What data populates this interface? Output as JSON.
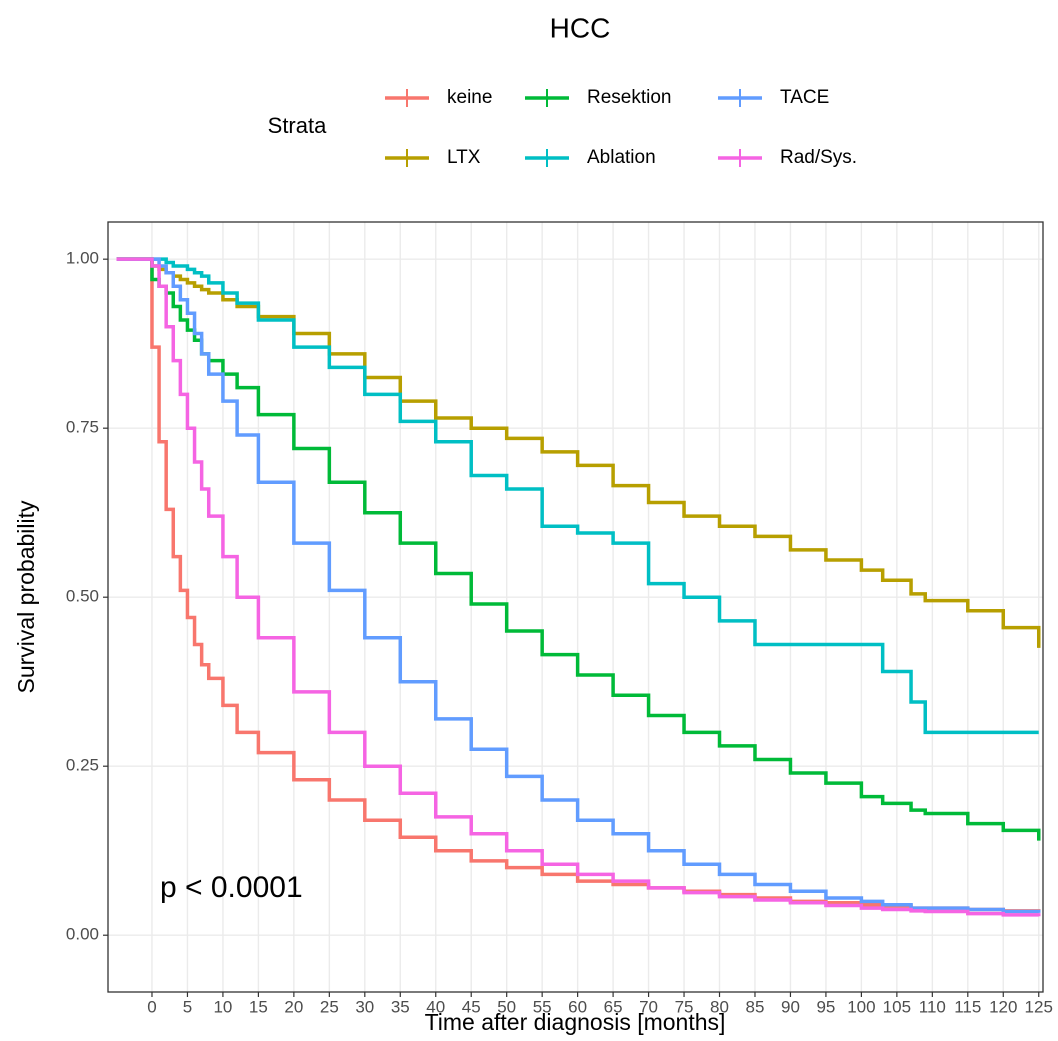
{
  "chart_data": {
    "type": "step",
    "title": "HCC",
    "xlabel": "Time after diagnosis [months]",
    "ylabel": "Survival probability",
    "legend_title": "Strata",
    "annotation": "p < 0.0001",
    "grid": true,
    "xlim": [
      -6.2,
      125.6
    ],
    "ylim": [
      -0.084,
      1.055
    ],
    "xticks": [
      0,
      5,
      10,
      15,
      20,
      25,
      30,
      35,
      40,
      45,
      50,
      55,
      60,
      65,
      70,
      75,
      80,
      85,
      90,
      95,
      100,
      105,
      110,
      115,
      120,
      125
    ],
    "yticks": [
      {
        "value": 0,
        "label": "0.00"
      },
      0.25,
      {
        "value": 0.5,
        "label": "0.50"
      },
      0.75,
      {
        "value": 1,
        "label": "1.00"
      }
    ],
    "x": [
      -5,
      0,
      1,
      2,
      3,
      4,
      5,
      6,
      7,
      8,
      10,
      12,
      15,
      20,
      25,
      30,
      35,
      40,
      45,
      50,
      55,
      60,
      65,
      70,
      75,
      80,
      85,
      90,
      95,
      100,
      103,
      107,
      109,
      115,
      120,
      125
    ],
    "series": [
      {
        "name": "keine",
        "color": "#F8766D",
        "values": [
          1,
          0.87,
          0.73,
          0.63,
          0.56,
          0.51,
          0.47,
          0.43,
          0.4,
          0.38,
          0.34,
          0.3,
          0.27,
          0.23,
          0.2,
          0.17,
          0.145,
          0.125,
          0.11,
          0.1,
          0.09,
          0.08,
          0.075,
          0.07,
          0.065,
          0.06,
          0.055,
          0.05,
          0.048,
          0.045,
          0.043,
          0.04,
          0.04,
          0.038,
          0.036,
          0.035
        ]
      },
      {
        "name": "LTX",
        "color": "#B79F00",
        "values": [
          1,
          0.99,
          0.985,
          0.98,
          0.975,
          0.97,
          0.965,
          0.96,
          0.955,
          0.95,
          0.94,
          0.93,
          0.915,
          0.89,
          0.86,
          0.825,
          0.79,
          0.765,
          0.75,
          0.735,
          0.715,
          0.695,
          0.665,
          0.64,
          0.62,
          0.605,
          0.59,
          0.57,
          0.555,
          0.54,
          0.525,
          0.505,
          0.495,
          0.48,
          0.455,
          0.425
        ]
      },
      {
        "name": "Resektion",
        "color": "#00BA38",
        "values": [
          1,
          0.97,
          0.96,
          0.95,
          0.93,
          0.91,
          0.895,
          0.88,
          0.86,
          0.85,
          0.83,
          0.81,
          0.77,
          0.72,
          0.67,
          0.625,
          0.58,
          0.535,
          0.49,
          0.45,
          0.415,
          0.385,
          0.355,
          0.325,
          0.3,
          0.28,
          0.26,
          0.24,
          0.225,
          0.205,
          0.195,
          0.185,
          0.18,
          0.165,
          0.155,
          0.14
        ]
      },
      {
        "name": "Ablation",
        "color": "#00BFC4",
        "values": [
          1,
          1,
          1,
          0.995,
          0.99,
          0.99,
          0.985,
          0.98,
          0.975,
          0.965,
          0.95,
          0.935,
          0.91,
          0.87,
          0.84,
          0.8,
          0.76,
          0.73,
          0.68,
          0.66,
          0.605,
          0.595,
          0.58,
          0.52,
          0.5,
          0.465,
          0.43,
          0.43,
          0.43,
          0.43,
          0.39,
          0.345,
          0.3,
          0.3,
          0.3,
          0.3
        ]
      },
      {
        "name": "TACE",
        "color": "#619CFF",
        "values": [
          1,
          1,
          0.99,
          0.98,
          0.96,
          0.94,
          0.92,
          0.89,
          0.86,
          0.83,
          0.79,
          0.74,
          0.67,
          0.58,
          0.51,
          0.44,
          0.375,
          0.32,
          0.275,
          0.235,
          0.2,
          0.17,
          0.15,
          0.125,
          0.105,
          0.09,
          0.075,
          0.065,
          0.055,
          0.05,
          0.045,
          0.04,
          0.04,
          0.038,
          0.035,
          0.033
        ]
      },
      {
        "name": "Rad/Sys.",
        "color": "#F564E3",
        "values": [
          1,
          0.99,
          0.96,
          0.9,
          0.85,
          0.8,
          0.75,
          0.7,
          0.66,
          0.62,
          0.56,
          0.5,
          0.44,
          0.36,
          0.3,
          0.25,
          0.21,
          0.175,
          0.15,
          0.125,
          0.105,
          0.09,
          0.08,
          0.07,
          0.063,
          0.057,
          0.052,
          0.048,
          0.044,
          0.04,
          0.038,
          0.036,
          0.035,
          0.032,
          0.03,
          0.028
        ]
      }
    ]
  }
}
